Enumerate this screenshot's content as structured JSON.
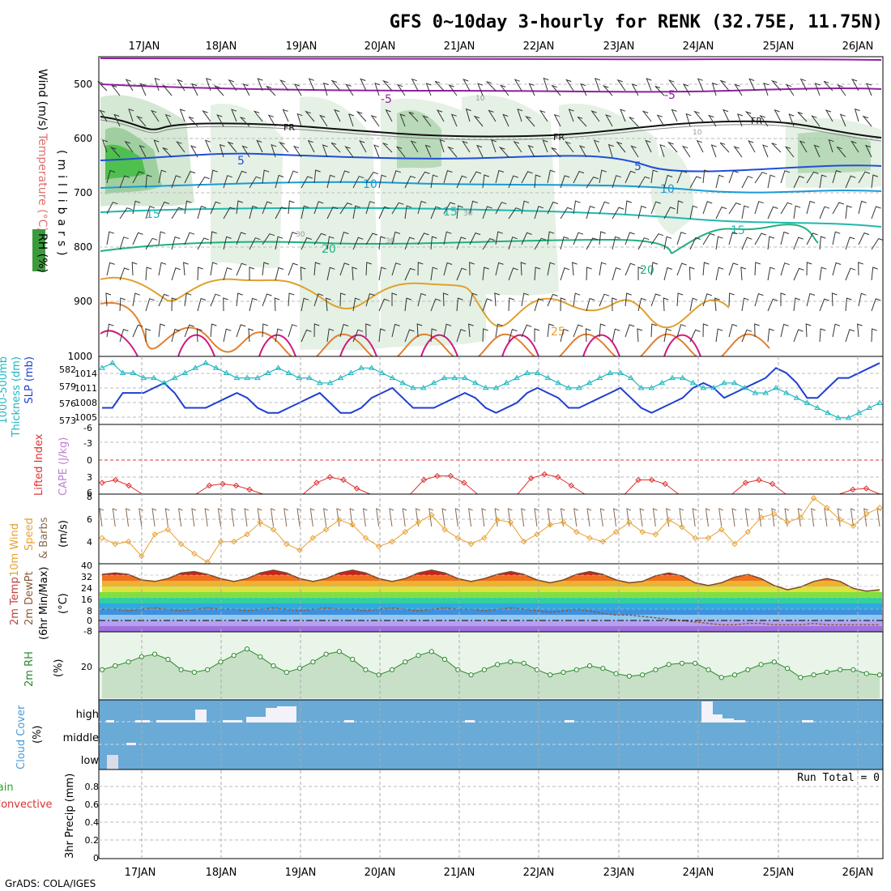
{
  "title": "GFS 0~10day 3-hourly for RENK (32.75E, 11.75N)",
  "credit": "GrADS: COLA/IGES",
  "dates": [
    "17JAN",
    "18JAN",
    "19JAN",
    "20JAN",
    "21JAN",
    "22JAN",
    "23JAN",
    "24JAN",
    "25JAN",
    "26JAN"
  ],
  "colors": {
    "rh_green": "#3c9a3c",
    "slp_blue": "#1f3fd0",
    "thickness_cyan": "#20b8c0",
    "lifted_red": "#e03030",
    "wind_orange": "#e8a030",
    "cloud_blue": "#6aaad6",
    "precip_green": "#30a030"
  },
  "panels": {
    "upper": {
      "ylabel_wind": "Wind (m/s)",
      "ylabel_temp": "Temperature (°C)",
      "ylabel_rh": "RH (%)",
      "ylabel_units": "(millibars)",
      "yticks": [
        "500",
        "600",
        "700",
        "800",
        "900",
        "1000"
      ],
      "contour_labels": [
        "-5",
        "-5",
        "FR",
        "FR",
        "FR",
        "5",
        "5",
        "10",
        "10",
        "15",
        "15",
        "15",
        "20",
        "20",
        "25",
        "10",
        "10",
        "30",
        "30",
        "30"
      ]
    },
    "slp": {
      "ylabel_a": "1000-500mb",
      "ylabel_b": "Thickness (dm)",
      "ylabel_c": "SLP (mb)",
      "left_ticks": [
        "582",
        "579",
        "576",
        "573"
      ],
      "right_ticks": [
        "1014",
        "1011",
        "1008",
        "1005"
      ]
    },
    "cape": {
      "ylabel_a": "Lifted Index",
      "ylabel_b": "CAPE (J/kg)",
      "yticks": [
        "-6",
        "-3",
        "0",
        "3",
        "6"
      ]
    },
    "wind10": {
      "ylabel_a": "10m Wind",
      "ylabel_b": "Speed",
      "ylabel_c": "& Barbs",
      "ylabel_units": "(m/s)",
      "yticks": [
        "8",
        "6",
        "4"
      ]
    },
    "temp2m": {
      "ylabel_a": "2m Temp",
      "ylabel_b": "2m DewPt",
      "ylabel_c": "(6hr Min/Max)",
      "ylabel_units": "(°C)",
      "yticks": [
        "40",
        "32",
        "24",
        "16",
        "8",
        "0",
        "-8"
      ]
    },
    "rh2m": {
      "ylabel_a": "2m RH",
      "ylabel_units": "(%)",
      "yticks": [
        "20"
      ]
    },
    "cloud": {
      "ylabel_a": "Cloud Cover",
      "ylabel_units": "(%)",
      "levels": [
        "high",
        "middle",
        "low"
      ]
    },
    "precip": {
      "ylabel_a": "Total / Rain",
      "ylabel_b": "Convective",
      "ylabel_c": "3hr Precip (mm)",
      "yticks": [
        "0.8",
        "0.6",
        "0.4",
        "0.2",
        "0"
      ],
      "run_total": "Run Total = 0"
    }
  },
  "chart_data": [
    {
      "type": "line",
      "title": "1000-500mb Thickness (dm) / SLP (mb)",
      "xlabel": "",
      "ylabel": "SLP (mb)",
      "ylim": [
        1003,
        1016
      ],
      "series": [
        {
          "name": "SLP (mb)",
          "values": [
            1006,
            1006,
            1009,
            1009,
            1009,
            1010,
            1011,
            1009,
            1006,
            1006,
            1006,
            1007,
            1008,
            1009,
            1008,
            1006,
            1005,
            1005,
            1006,
            1007,
            1008,
            1009,
            1007,
            1005,
            1005,
            1006,
            1008,
            1009,
            1010,
            1008,
            1006,
            1006,
            1006,
            1007,
            1008,
            1009,
            1008,
            1006,
            1005,
            1006,
            1007,
            1009,
            1010,
            1009,
            1008,
            1006,
            1006,
            1007,
            1008,
            1009,
            1010,
            1008,
            1006,
            1005,
            1006,
            1007,
            1008,
            1010,
            1011,
            1010,
            1008,
            1009,
            1010,
            1011,
            1012,
            1014,
            1013,
            1011,
            1008,
            1008,
            1010,
            1012,
            1012,
            1013,
            1014,
            1015
          ]
        },
        {
          "name": "1000-500mb Thickness (dm)",
          "values": [
            1014,
            1015,
            1013,
            1013,
            1012,
            1012,
            1011,
            1012,
            1013,
            1014,
            1015,
            1014,
            1013,
            1012,
            1012,
            1012,
            1013,
            1014,
            1013,
            1012,
            1012,
            1011,
            1011,
            1012,
            1013,
            1014,
            1014,
            1013,
            1012,
            1011,
            1010,
            1010,
            1011,
            1012,
            1012,
            1012,
            1011,
            1010,
            1010,
            1011,
            1012,
            1013,
            1013,
            1012,
            1011,
            1010,
            1010,
            1011,
            1012,
            1013,
            1013,
            1012,
            1010,
            1010,
            1011,
            1012,
            1012,
            1011,
            1010,
            1010,
            1011,
            1011,
            1010,
            1009,
            1009,
            1010,
            1009,
            1008,
            1007,
            1006,
            1005,
            1004,
            1004,
            1005,
            1006,
            1007
          ]
        }
      ]
    },
    {
      "type": "line",
      "title": "Lifted Index",
      "ylim": [
        -6,
        6
      ],
      "series": [
        {
          "name": "Lifted Index",
          "values": [
            4,
            3.5,
            4.5,
            6,
            6,
            6,
            6,
            6,
            4.5,
            4.2,
            4.5,
            5.2,
            6,
            6,
            6,
            6,
            4,
            3,
            3.5,
            5,
            6,
            6,
            6,
            6,
            3.5,
            2.8,
            2.8,
            4,
            6,
            6,
            6,
            6,
            3.2,
            2.5,
            3,
            4.5,
            6,
            6,
            6,
            6,
            3.5,
            3.5,
            4.2,
            6,
            6,
            6,
            6,
            6,
            4,
            3.5,
            4.2,
            6,
            6,
            6,
            6,
            6,
            5.2,
            5,
            6
          ]
        }
      ]
    },
    {
      "type": "line",
      "title": "10m Wind Speed (m/s)",
      "ylim": [
        2.5,
        8
      ],
      "series": [
        {
          "name": "10m Wind Speed",
          "values": [
            4.5,
            4,
            4.2,
            3,
            4.8,
            5.2,
            4,
            3.2,
            2.5,
            4.2,
            4.2,
            4.8,
            5.8,
            5.2,
            4,
            3.5,
            4.5,
            5.2,
            6,
            5.6,
            4.5,
            3.8,
            4.2,
            5,
            5.8,
            6.4,
            5.2,
            4.5,
            4,
            4.5,
            6,
            5.8,
            4.2,
            4.8,
            5.6,
            5.8,
            5,
            4.5,
            4.2,
            5,
            5.8,
            5,
            4.8,
            6,
            5.4,
            4.5,
            4.5,
            5.2,
            4,
            5,
            6.2,
            6.5,
            5.8,
            6.2,
            7.8,
            7,
            6,
            5.5,
            6.5,
            7
          ]
        }
      ]
    },
    {
      "type": "area",
      "title": "2m Temp",
      "ylim": [
        -8,
        40
      ],
      "series": [
        {
          "name": "2m Temp",
          "values": [
            33,
            34,
            33,
            29,
            28,
            30,
            34,
            35,
            33,
            30,
            28,
            30,
            34,
            36,
            34,
            30,
            28,
            30,
            34,
            36,
            34,
            30,
            28,
            30,
            34,
            36,
            34,
            30,
            28,
            30,
            33,
            35,
            33,
            29,
            27,
            29,
            33,
            35,
            33,
            29,
            27,
            28,
            32,
            34,
            32,
            27,
            25,
            27,
            31,
            33,
            30,
            25,
            22,
            24,
            28,
            30,
            28,
            23,
            21,
            22
          ]
        },
        {
          "name": "2m DewPt",
          "values": [
            8,
            8,
            7,
            8,
            9,
            8,
            7,
            8,
            9,
            8,
            8,
            7,
            8,
            9,
            8,
            7,
            8,
            9,
            8,
            8,
            7,
            8,
            9,
            8,
            7,
            8,
            9,
            8,
            8,
            7,
            8,
            9,
            8,
            7,
            6,
            7,
            8,
            7,
            5,
            4,
            4,
            3,
            2,
            1,
            0,
            -1,
            -2,
            -3,
            -3,
            -2,
            -2,
            -3,
            -3,
            -3,
            -2,
            -3,
            -3,
            -3,
            -3,
            -3
          ]
        }
      ]
    },
    {
      "type": "area",
      "title": "2m RH",
      "ylim": [
        0,
        50
      ],
      "series": [
        {
          "name": "2m RH",
          "values": [
            22,
            25,
            28,
            32,
            34,
            30,
            22,
            20,
            22,
            28,
            33,
            38,
            32,
            25,
            20,
            23,
            28,
            34,
            36,
            30,
            22,
            18,
            22,
            28,
            33,
            36,
            30,
            22,
            18,
            22,
            26,
            28,
            27,
            22,
            18,
            20,
            22,
            25,
            23,
            19,
            17,
            18,
            22,
            26,
            27,
            27,
            22,
            16,
            18,
            22,
            26,
            28,
            23,
            16,
            18,
            20,
            22,
            22,
            19,
            18
          ]
        }
      ]
    },
    {
      "type": "bar",
      "title": "Cloud Cover (%)",
      "categories": [
        "17JAN",
        "18JAN",
        "19JAN",
        "20JAN",
        "21JAN",
        "22JAN",
        "23JAN",
        "24JAN",
        "25JAN",
        "26JAN"
      ],
      "series": [
        {
          "name": "high",
          "values": [
            5,
            20,
            40,
            0,
            0,
            0,
            0,
            40,
            5,
            0
          ]
        },
        {
          "name": "middle",
          "values": [
            5,
            0,
            0,
            0,
            0,
            0,
            0,
            0,
            0,
            0
          ]
        },
        {
          "name": "low",
          "values": [
            20,
            0,
            0,
            0,
            0,
            0,
            0,
            0,
            0,
            0
          ]
        }
      ]
    },
    {
      "type": "bar",
      "title": "3hr Precip (mm)",
      "ylim": [
        0,
        1
      ],
      "series": [
        {
          "name": "3hr Precip",
          "values": [
            0,
            0,
            0,
            0,
            0,
            0,
            0,
            0,
            0,
            0
          ]
        }
      ]
    }
  ]
}
